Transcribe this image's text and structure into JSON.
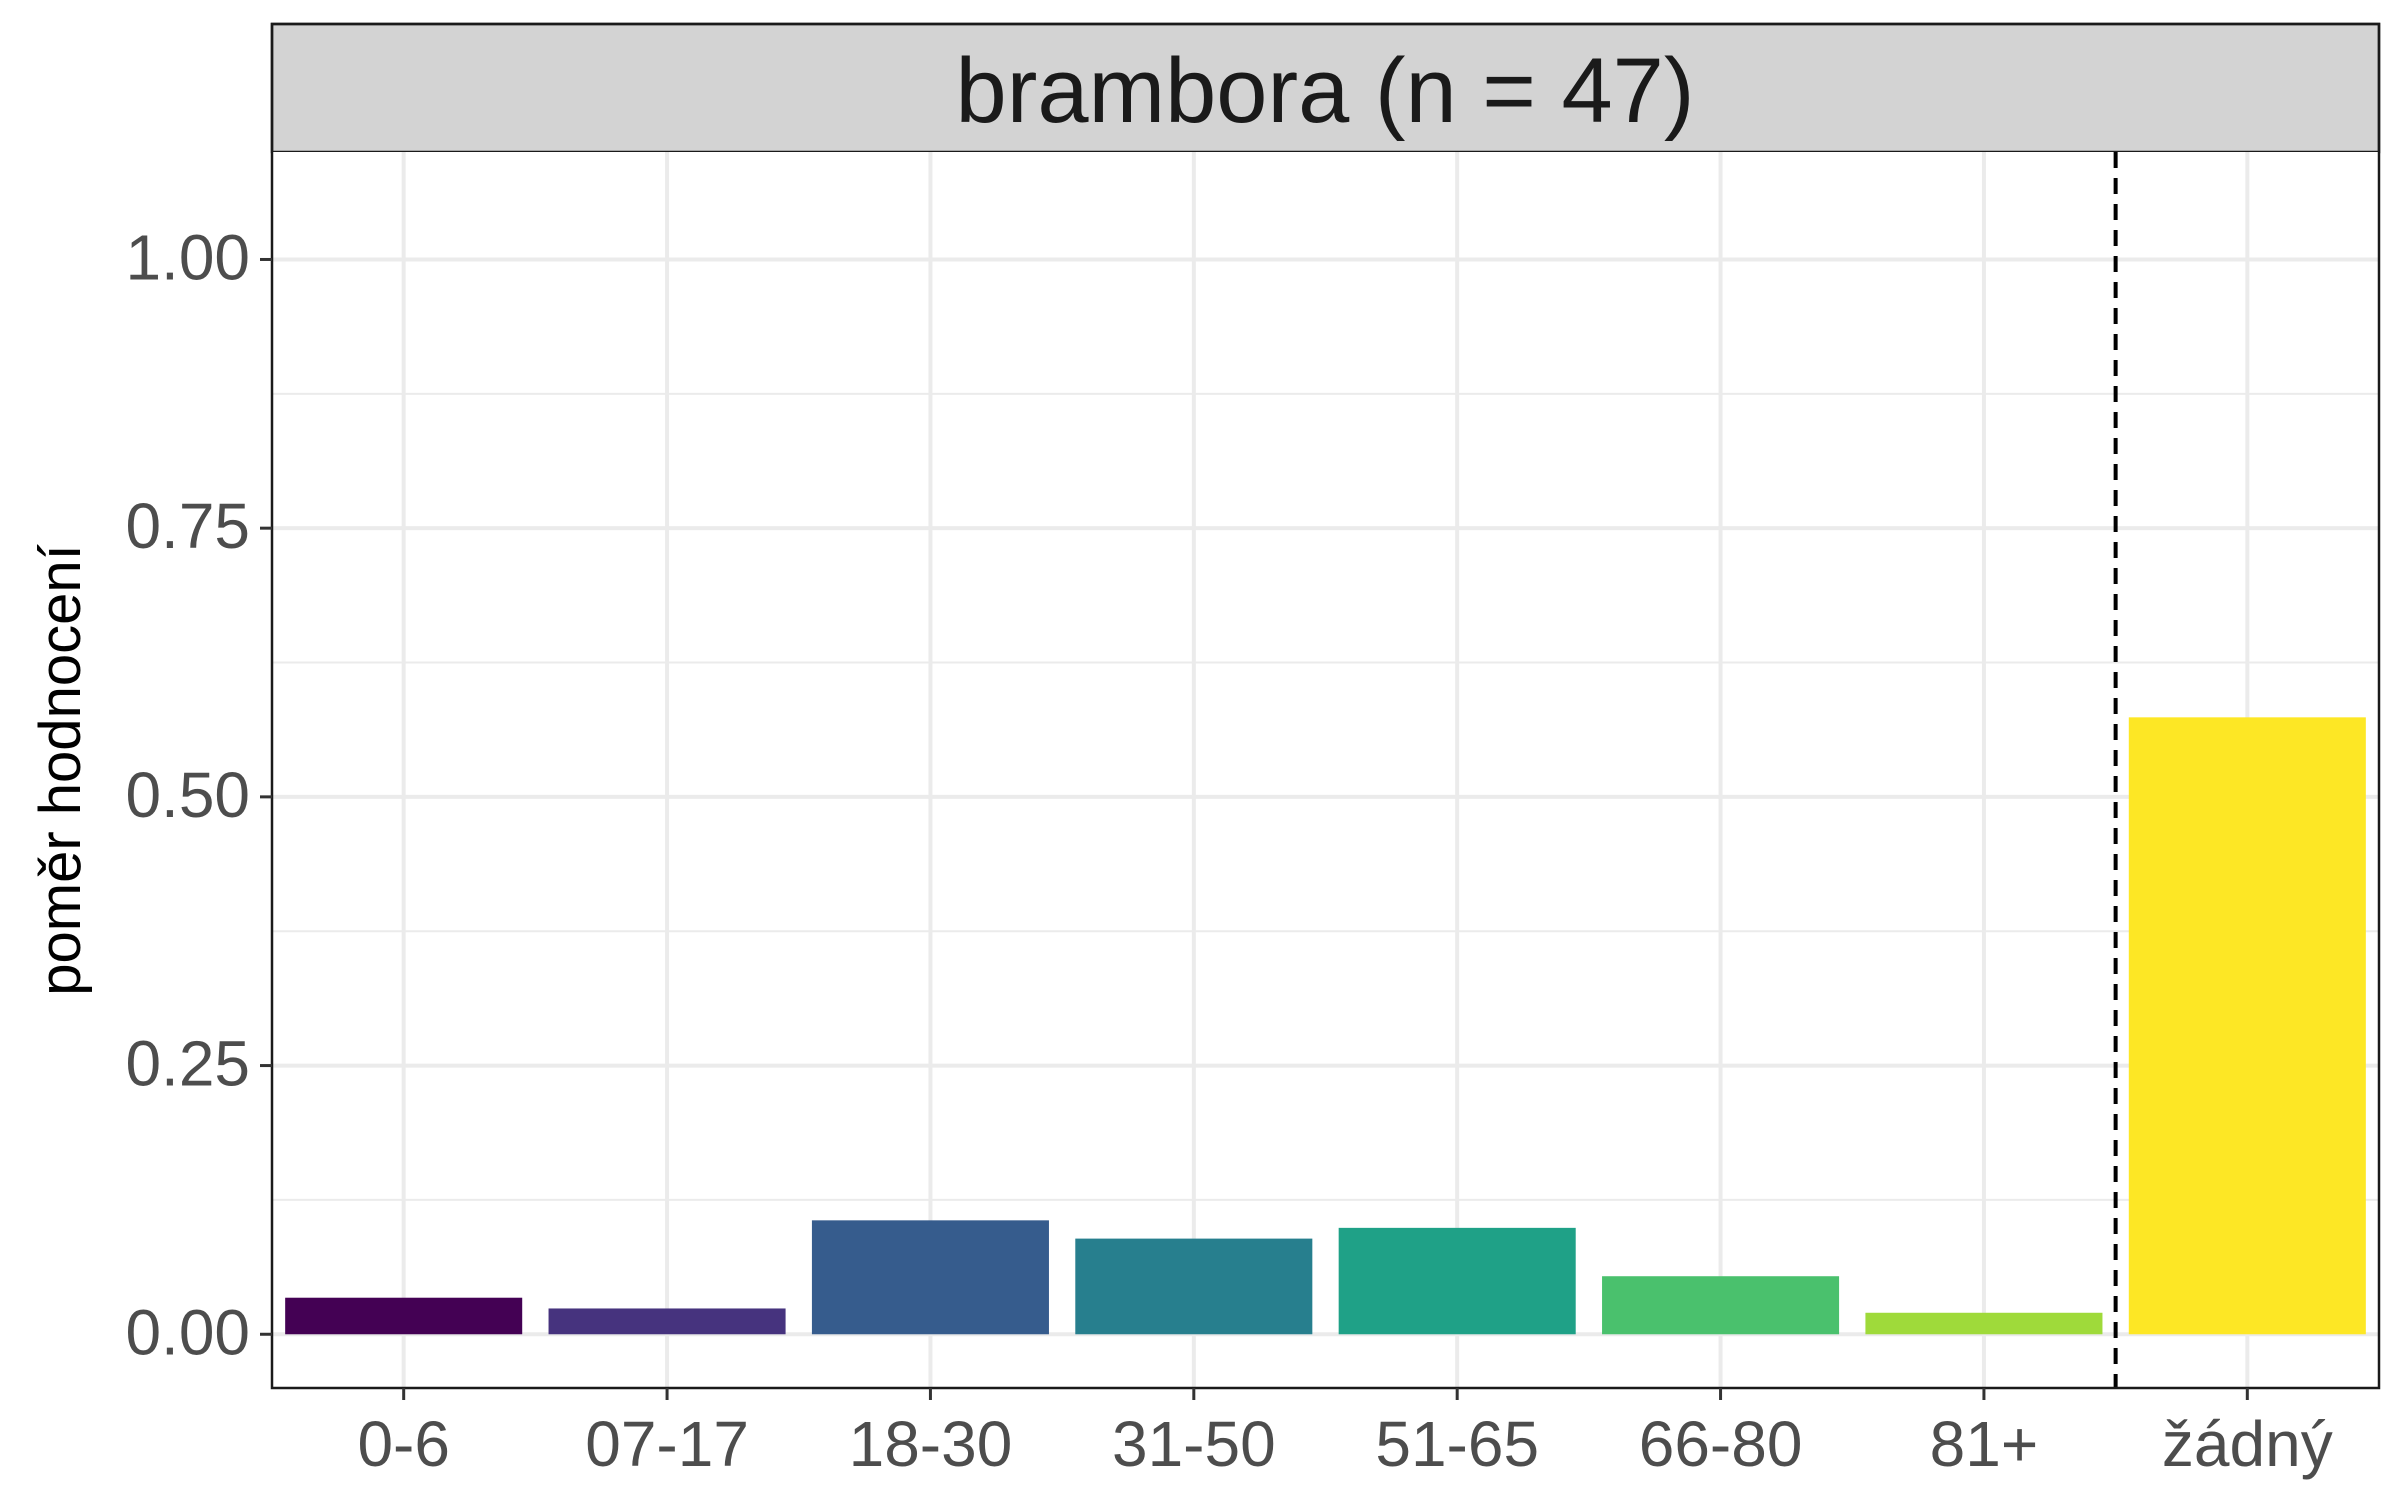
{
  "chart_data": {
    "type": "bar",
    "facet_title": "brambora (n = 47)",
    "ylabel": "poměr hodnocení",
    "xlabel": "",
    "categories": [
      "0-6",
      "07-17",
      "18-30",
      "31-50",
      "51-65",
      "66-80",
      "81+",
      "žádný"
    ],
    "values": [
      0.034,
      0.024,
      0.106,
      0.089,
      0.099,
      0.054,
      0.02,
      0.574
    ],
    "colors": [
      "#440154",
      "#46337E",
      "#365C8D",
      "#277F8E",
      "#1FA187",
      "#4AC16D",
      "#9FDA3A",
      "#FDE725"
    ],
    "ylim": [
      -0.05,
      1.1
    ],
    "yticks": [
      0,
      0.25,
      0.5,
      0.75,
      1.0
    ],
    "ytick_labels": [
      "0.00",
      "0.25",
      "0.50",
      "0.75",
      "1.00"
    ],
    "separator_after_category": "81+",
    "separator_style": "dashed",
    "grid": true
  }
}
